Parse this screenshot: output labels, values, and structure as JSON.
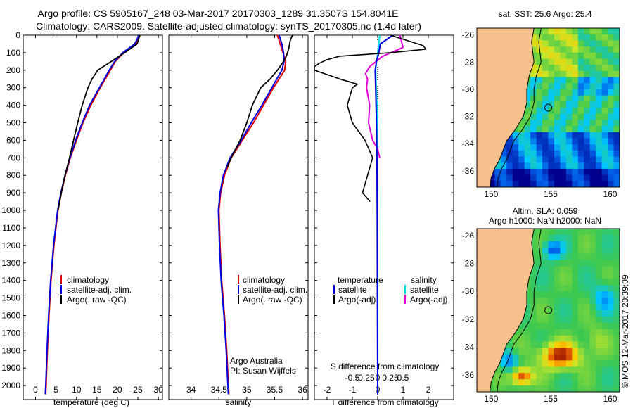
{
  "header": {
    "line1": "Argo profile: CS 5905167_248 03-Mar-2017 20170303_1289 31.3507S 154.8041E",
    "line2": "Climatology: CARS2009. Satellite-adjusted climatology: synTS_20170305.nc (1.4d later)"
  },
  "colors": {
    "climatology": "#e00000",
    "satellite": "#0000e0",
    "argo": "#000000",
    "salinity_satellite": "#00d8e0",
    "salinity_argo": "#e000e0",
    "land": "#f5c08c"
  },
  "chart_data": [
    {
      "type": "line",
      "xlabel": "temperature (deg C)",
      "ylabel": "",
      "xlim": [
        -3,
        31
      ],
      "ylim": [
        2080,
        0
      ],
      "xticks": [
        0,
        5,
        10,
        15,
        20,
        25,
        30
      ],
      "yticks": [
        0,
        100,
        200,
        300,
        400,
        500,
        600,
        700,
        800,
        900,
        1000,
        1100,
        1200,
        1300,
        1400,
        1500,
        1600,
        1700,
        1800,
        1900,
        2000
      ],
      "depth": [
        0,
        50,
        100,
        150,
        200,
        300,
        400,
        500,
        600,
        700,
        800,
        900,
        1000,
        1200,
        1400,
        1600,
        1800,
        2000,
        2050
      ],
      "series": [
        {
          "name": "climatology",
          "values": [
            25.5,
            24.5,
            21.5,
            19.5,
            18.3,
            15.8,
            13.5,
            11.6,
            10.0,
            8.5,
            7.3,
            6.3,
            5.5,
            4.5,
            3.8,
            3.3,
            2.9,
            2.6,
            2.5
          ]
        },
        {
          "name": "satellite-adj. clim.",
          "values": [
            25.3,
            24.2,
            21.3,
            19.3,
            18.0,
            15.6,
            13.2,
            11.4,
            9.8,
            8.4,
            7.2,
            6.2,
            5.4,
            4.4,
            3.7,
            3.2,
            2.8,
            2.5,
            2.4
          ]
        },
        {
          "name": "Argo(..raw -QC)",
          "depth": [
            0,
            50,
            100,
            150,
            200,
            250,
            300,
            400,
            500,
            600,
            700,
            800,
            900,
            1000
          ],
          "values": [
            25.5,
            24.8,
            21.8,
            18.5,
            15.2,
            13.8,
            12.8,
            11.4,
            10.3,
            9.3,
            8.3,
            7.2,
            6.3,
            5.5
          ]
        }
      ],
      "legend": [
        "climatology",
        "satellite-adj. clim.",
        "Argo(..raw -QC)"
      ]
    },
    {
      "type": "line",
      "xlabel": "salinity",
      "ylabel": "",
      "xlim": [
        33.6,
        36.1
      ],
      "ylim": [
        2080,
        0
      ],
      "xticks": [
        34,
        34.5,
        35,
        35.5,
        36
      ],
      "depth": [
        0,
        50,
        100,
        150,
        200,
        300,
        400,
        500,
        600,
        700,
        800,
        900,
        1000,
        1200,
        1400,
        1600,
        1800,
        2000,
        2050
      ],
      "series": [
        {
          "name": "climatology",
          "values": [
            35.55,
            35.6,
            35.65,
            35.7,
            35.68,
            35.48,
            35.3,
            35.12,
            34.92,
            34.72,
            34.6,
            34.53,
            34.5,
            34.52,
            34.55,
            34.6,
            34.64,
            34.67,
            34.68
          ]
        },
        {
          "name": "satellite-adj. clim.",
          "values": [
            35.58,
            35.63,
            35.66,
            35.67,
            35.63,
            35.45,
            35.27,
            35.08,
            34.9,
            34.7,
            34.58,
            34.52,
            34.49,
            34.51,
            34.54,
            34.59,
            34.63,
            34.66,
            34.67
          ]
        },
        {
          "name": "Argo(..raw -QC)",
          "depth": [
            0,
            30,
            80,
            120,
            160,
            200,
            250,
            300,
            400,
            500,
            600,
            700,
            750
          ],
          "values": [
            35.82,
            35.78,
            35.75,
            35.71,
            35.64,
            35.55,
            35.42,
            35.25,
            35.1,
            35.0,
            34.88,
            34.72,
            34.65
          ]
        }
      ],
      "legend": [
        "climatology",
        "satellite-adj. clim.",
        "Argo(..raw -QC)"
      ],
      "annotation": [
        "Argo Australia",
        "PI: Susan Wijffels"
      ]
    },
    {
      "type": "line",
      "xlabel": "T difference from climatology",
      "xlabel_top": "S difference from climatology",
      "xlim": [
        -2.5,
        3.0
      ],
      "ylim": [
        2080,
        0
      ],
      "xticks": [
        -2,
        -1,
        0,
        1,
        2
      ],
      "sticks": [
        -0.5,
        -0.25,
        0,
        0.25,
        0.5
      ],
      "sticklabels": [
        "-0.5",
        "-0.25",
        "0",
        "0.25",
        "0.5"
      ],
      "series": [
        {
          "name": "temperature satellite",
          "depth": [
            0,
            50,
            100,
            150,
            200,
            300,
            500,
            700,
            1000,
            1500,
            2050
          ],
          "values": [
            0.6,
            0.1,
            0.05,
            -0.05,
            -0.1,
            -0.08,
            -0.05,
            -0.03,
            -0.02,
            -0.01,
            0.0
          ]
        },
        {
          "name": "temperature Argo(-adj)",
          "depth": [
            0,
            60,
            80,
            100,
            120,
            140,
            160,
            180,
            200,
            250,
            280,
            300,
            400,
            500,
            600,
            700,
            800,
            900,
            950
          ],
          "values": [
            0.5,
            1.8,
            1.9,
            0.5,
            -1.5,
            -2.0,
            -2.3,
            -2.5,
            -2.5,
            -1.5,
            -0.8,
            -1.0,
            -1.2,
            -1.0,
            -0.5,
            -0.2,
            -0.4,
            -0.6,
            -0.3
          ]
        },
        {
          "name": "salinity satellite",
          "depth": [
            0,
            100,
            200,
            500,
            1000,
            2050
          ],
          "values": [
            0.02,
            0.0,
            -0.02,
            0.0,
            0.0,
            0.0
          ]
        },
        {
          "name": "salinity Argo(-adj)",
          "depth": [
            0,
            70,
            120,
            180,
            220,
            250,
            300,
            400,
            500,
            600,
            650,
            700
          ],
          "values": [
            0.22,
            0.25,
            0.05,
            -0.08,
            -0.12,
            -0.1,
            -0.11,
            -0.08,
            -0.09,
            -0.05,
            0.0,
            0.02
          ]
        }
      ],
      "legend": {
        "temperature": "temperature",
        "salinity": "salinity",
        "satellite": "satellite",
        "argo": "Argo(-adj)"
      }
    },
    {
      "type": "heatmap",
      "title": "sat. SST: 25.6 Argo: 25.4",
      "xlim": [
        148.8,
        160.8
      ],
      "ylim": [
        -37.2,
        -25.5
      ],
      "xticks": [
        150,
        155,
        160
      ],
      "yticks": [
        -26,
        -28,
        -30,
        -32,
        -34,
        -36
      ],
      "argo_location": [
        154.8041,
        -31.3507
      ]
    },
    {
      "type": "heatmap",
      "title": "Altim. SLA: 0.059",
      "subtitle": "Argo h1000: NaN h2000: NaN",
      "xlim": [
        148.8,
        160.8
      ],
      "ylim": [
        -37.2,
        -25.5
      ],
      "xticks": [
        150,
        155,
        160
      ],
      "yticks": [
        -26,
        -28,
        -30,
        -32,
        -34,
        -36
      ],
      "argo_location": [
        154.8041,
        -31.3507
      ]
    }
  ],
  "credit": "©IMOS 12-Mar-2017 20:39:09"
}
